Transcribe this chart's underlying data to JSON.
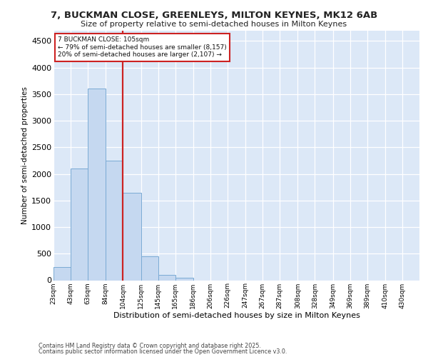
{
  "title_line1": "7, BUCKMAN CLOSE, GREENLEYS, MILTON KEYNES, MK12 6AB",
  "title_line2": "Size of property relative to semi-detached houses in Milton Keynes",
  "xlabel": "Distribution of semi-detached houses by size in Milton Keynes",
  "ylabel": "Number of semi-detached properties",
  "annotation_title": "7 BUCKMAN CLOSE: 105sqm",
  "annotation_line2": "← 79% of semi-detached houses are smaller (8,157)",
  "annotation_line3": "20% of semi-detached houses are larger (2,107) →",
  "footer_line1": "Contains HM Land Registry data © Crown copyright and database right 2025.",
  "footer_line2": "Contains public sector information licensed under the Open Government Licence v3.0.",
  "bar_color": "#c5d8f0",
  "bar_edge_color": "#7aaad4",
  "bg_color": "#dce8f7",
  "grid_color": "#ffffff",
  "fig_color": "#ffffff",
  "redline_color": "#cc2222",
  "bin_edges": [
    23,
    43,
    63,
    84,
    104,
    125,
    145,
    165,
    186,
    206,
    226,
    247,
    267,
    287,
    308,
    328,
    349,
    369,
    389,
    410,
    430
  ],
  "values": [
    250,
    2100,
    3600,
    2250,
    1640,
    450,
    100,
    50,
    0,
    0,
    0,
    0,
    0,
    0,
    0,
    0,
    0,
    0,
    0,
    0
  ],
  "xtick_labels": [
    "23sqm",
    "43sqm",
    "63sqm",
    "84sqm",
    "104sqm",
    "125sqm",
    "145sqm",
    "165sqm",
    "186sqm",
    "206sqm",
    "226sqm",
    "247sqm",
    "267sqm",
    "287sqm",
    "308sqm",
    "328sqm",
    "349sqm",
    "369sqm",
    "389sqm",
    "410sqm",
    "430sqm"
  ],
  "redline_x": 104,
  "ylim": [
    0,
    4700
  ],
  "yticks": [
    0,
    500,
    1000,
    1500,
    2000,
    2500,
    3000,
    3500,
    4000,
    4500
  ]
}
